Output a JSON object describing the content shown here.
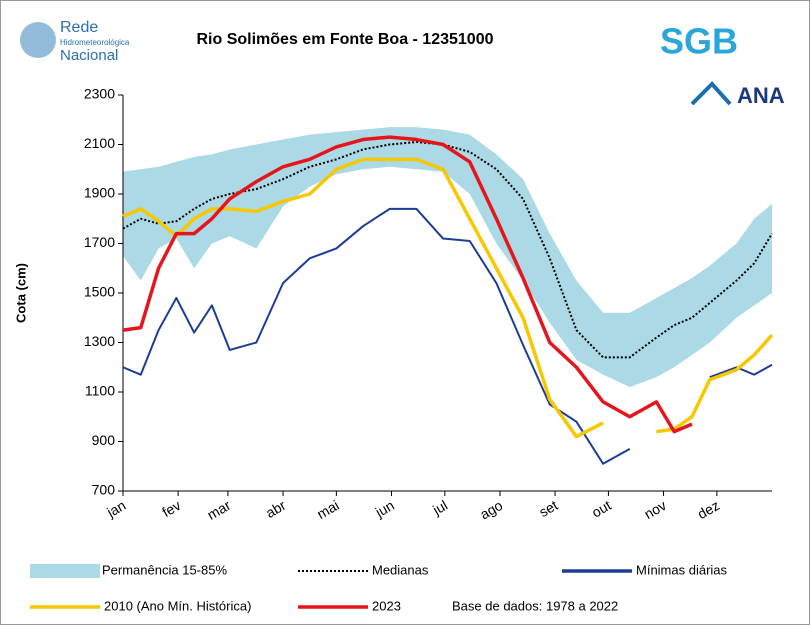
{
  "chart_data": {
    "type": "line",
    "title": "Rio Solimões em Fonte Boa - 12351000",
    "logos": {
      "rede": [
        "Rede",
        "Hidrometeorológica",
        "Nacional"
      ],
      "sgb": "SGB",
      "ana": "ANA"
    },
    "y_label": "Cota (cm)",
    "annotation": "Base de dados: 1978 a 2022",
    "x": [
      0,
      10,
      20,
      30,
      40,
      50,
      60,
      75,
      90,
      105,
      120,
      135,
      150,
      165,
      180,
      195,
      210,
      225,
      240,
      255,
      270,
      285,
      300,
      310,
      320,
      330,
      345,
      355,
      365
    ],
    "xlim": [
      0,
      365
    ],
    "xticks": [
      {
        "value": 0,
        "label": "jan"
      },
      {
        "value": 31,
        "label": "fev"
      },
      {
        "value": 59,
        "label": "mar"
      },
      {
        "value": 90,
        "label": "abr"
      },
      {
        "value": 120,
        "label": "mai"
      },
      {
        "value": 151,
        "label": "jun"
      },
      {
        "value": 181,
        "label": "jul"
      },
      {
        "value": 212,
        "label": "ago"
      },
      {
        "value": 243,
        "label": "set"
      },
      {
        "value": 273,
        "label": "out"
      },
      {
        "value": 304,
        "label": "nov"
      },
      {
        "value": 334,
        "label": "dez"
      }
    ],
    "ylim": [
      700,
      2300
    ],
    "yticks": [
      700,
      900,
      1100,
      1300,
      1500,
      1700,
      1900,
      2100,
      2300
    ],
    "band": {
      "name": "Permanência 15-85%",
      "color": "#abd9e5",
      "upper": [
        1990,
        2000,
        2010,
        2030,
        2050,
        2060,
        2080,
        2100,
        2120,
        2140,
        2150,
        2160,
        2170,
        2170,
        2160,
        2140,
        2060,
        1960,
        1740,
        1550,
        1420,
        1420,
        1480,
        1520,
        1560,
        1610,
        1700,
        1800,
        1860
      ],
      "lower": [
        1650,
        1550,
        1680,
        1720,
        1600,
        1700,
        1730,
        1680,
        1850,
        1930,
        1980,
        2000,
        2010,
        2000,
        1990,
        1900,
        1700,
        1550,
        1380,
        1230,
        1170,
        1120,
        1160,
        1200,
        1250,
        1300,
        1400,
        1450,
        1500
      ]
    },
    "series": [
      {
        "name": "Medianas",
        "color": "#000000",
        "dashed": true,
        "values": [
          1760,
          1800,
          1780,
          1790,
          1840,
          1880,
          1900,
          1920,
          1960,
          2010,
          2040,
          2080,
          2100,
          2110,
          2100,
          2070,
          2000,
          1880,
          1640,
          1350,
          1240,
          1240,
          1320,
          1370,
          1400,
          1460,
          1550,
          1620,
          1740
        ]
      },
      {
        "name": "Mínimas diárias",
        "color": "#1c3d97",
        "values": [
          1200,
          1170,
          1350,
          1480,
          1340,
          1450,
          1270,
          1300,
          1540,
          1640,
          1680,
          1770,
          1840,
          1840,
          1720,
          1710,
          1540,
          1290,
          1050,
          980,
          810,
          870,
          null,
          null,
          null,
          1160,
          1200,
          1170,
          1210
        ]
      },
      {
        "name": "2010 (Ano Mín. Histórica)",
        "color": "#f7c700",
        "values": [
          1810,
          1840,
          1790,
          1730,
          1800,
          1840,
          1840,
          1830,
          1870,
          1900,
          2000,
          2040,
          2040,
          2040,
          2000,
          1800,
          1600,
          1400,
          1070,
          920,
          975,
          null,
          940,
          950,
          1000,
          1150,
          1190,
          1250,
          1330
        ]
      },
      {
        "name": "2023",
        "color": "#e8141c",
        "values": [
          1350,
          1360,
          1600,
          1740,
          1740,
          1800,
          1880,
          1950,
          2010,
          2040,
          2090,
          2120,
          2130,
          2120,
          2100,
          2030,
          1800,
          1560,
          1300,
          1200,
          1060,
          1000,
          1060,
          940,
          970,
          null,
          null,
          null,
          null
        ]
      }
    ]
  }
}
